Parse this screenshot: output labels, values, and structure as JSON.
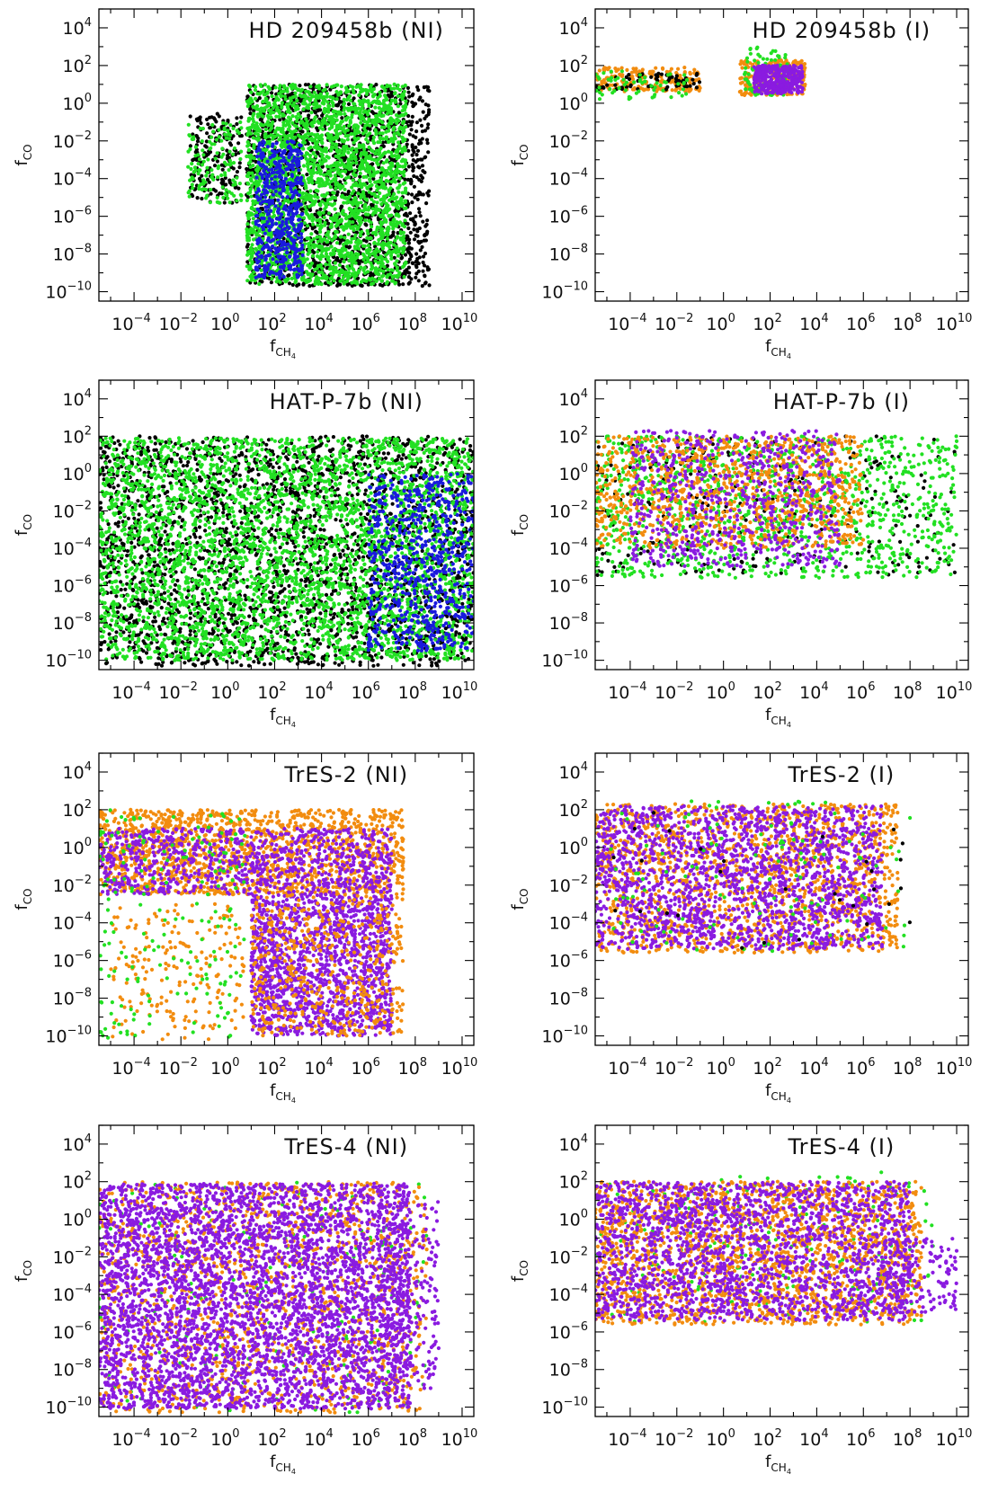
{
  "figure": {
    "layout": "4 rows x 2 columns"
  },
  "colors": {
    "black": "#000000",
    "green": "#22e022",
    "blue": "#1a1add",
    "orange": "#f28c0f",
    "purple": "#8a1be0"
  },
  "axis_text": {
    "xlabel": "f",
    "xlabel_sub": "CH",
    "xlabel_subsub": "4",
    "ylabel": "f",
    "ylabel_sub": "CO"
  },
  "ticks": {
    "x": [
      {
        "base": "10",
        "exp": "−4",
        "value": -4
      },
      {
        "base": "10",
        "exp": "−2",
        "value": -2
      },
      {
        "base": "10",
        "exp": "0",
        "value": 0
      },
      {
        "base": "10",
        "exp": "2",
        "value": 2
      },
      {
        "base": "10",
        "exp": "4",
        "value": 4
      },
      {
        "base": "10",
        "exp": "6",
        "value": 6
      },
      {
        "base": "10",
        "exp": "8",
        "value": 8
      },
      {
        "base": "10",
        "exp": "10",
        "value": 10
      }
    ],
    "y": [
      {
        "base": "10",
        "exp": "4",
        "value": 4
      },
      {
        "base": "10",
        "exp": "2",
        "value": 2
      },
      {
        "base": "10",
        "exp": "0",
        "value": 0
      },
      {
        "base": "10",
        "exp": "−2",
        "value": -2
      },
      {
        "base": "10",
        "exp": "−4",
        "value": -4
      },
      {
        "base": "10",
        "exp": "−6",
        "value": -6
      },
      {
        "base": "10",
        "exp": "−8",
        "value": -8
      },
      {
        "base": "10",
        "exp": "−10",
        "value": -10
      }
    ]
  },
  "chart_data": [
    {
      "type": "scatter",
      "title": "HD 209458b (NI)",
      "xscale": "log",
      "yscale": "log",
      "xlim_log10": [
        -5.5,
        10.5
      ],
      "ylim_log10": [
        -10.5,
        5
      ],
      "xlabel": "f_CH4",
      "ylabel": "f_CO",
      "clusters": [
        {
          "color": "black",
          "x_log10": [
            0.8,
            8.6
          ],
          "y_log10": [
            -9.7,
            1.0
          ],
          "density": 1700
        },
        {
          "color": "black",
          "x_log10": [
            -1.6,
            0.6
          ],
          "y_log10": [
            -5.3,
            -0.5
          ],
          "density": 180
        },
        {
          "color": "green",
          "x_log10": [
            0.8,
            7.6
          ],
          "y_log10": [
            -9.6,
            1.0
          ],
          "density": 2600
        },
        {
          "color": "green",
          "x_log10": [
            -1.7,
            0.6
          ],
          "y_log10": [
            -5.3,
            -1.0
          ],
          "density": 140
        },
        {
          "color": "blue",
          "x_log10": [
            1.2,
            3.2
          ],
          "y_log10": [
            -9.3,
            -2.0
          ],
          "density": 500
        }
      ]
    },
    {
      "type": "scatter",
      "title": "HD 209458b (I)",
      "xscale": "log",
      "yscale": "log",
      "xlim_log10": [
        -5.5,
        10.5
      ],
      "ylim_log10": [
        -10.5,
        5
      ],
      "xlabel": "f_CH4",
      "ylabel": "f_CO",
      "clusters": [
        {
          "color": "orange",
          "x_log10": [
            -5.5,
            -1.0
          ],
          "y_log10": [
            0.6,
            1.9
          ],
          "density": 200
        },
        {
          "color": "black",
          "x_log10": [
            -5.5,
            -1.0
          ],
          "y_log10": [
            0.7,
            1.6
          ],
          "density": 60
        },
        {
          "color": "green",
          "x_log10": [
            -5.5,
            -1.5
          ],
          "y_log10": [
            0.2,
            1.7
          ],
          "density": 60
        },
        {
          "color": "orange",
          "x_log10": [
            0.7,
            3.5
          ],
          "y_log10": [
            0.4,
            2.3
          ],
          "density": 260
        },
        {
          "color": "green",
          "x_log10": [
            0.9,
            2.8
          ],
          "y_log10": [
            0.4,
            3.0
          ],
          "density": 90
        },
        {
          "color": "purple",
          "x_log10": [
            1.3,
            3.4
          ],
          "y_log10": [
            0.5,
            2.0
          ],
          "density": 320
        }
      ]
    },
    {
      "type": "scatter",
      "title": "HAT-P-7b (NI)",
      "xscale": "log",
      "yscale": "log",
      "xlim_log10": [
        -5.5,
        10.5
      ],
      "ylim_log10": [
        -10.5,
        5
      ],
      "xlabel": "f_CH4",
      "ylabel": "f_CO",
      "clusters": [
        {
          "color": "black",
          "x_log10": [
            -5.5,
            10.5
          ],
          "y_log10": [
            -10.3,
            2.0
          ],
          "density": 2600
        },
        {
          "color": "green",
          "x_log10": [
            -5.5,
            10.5
          ],
          "y_log10": [
            -10.0,
            1.9
          ],
          "density": 3600
        },
        {
          "color": "blue",
          "x_log10": [
            6.0,
            10.5
          ],
          "y_log10": [
            -9.5,
            0.0
          ],
          "density": 700
        }
      ]
    },
    {
      "type": "scatter",
      "title": "HAT-P-7b (I)",
      "xscale": "log",
      "yscale": "log",
      "xlim_log10": [
        -5.5,
        10.5
      ],
      "ylim_log10": [
        -10.5,
        5
      ],
      "xlabel": "f_CH4",
      "ylabel": "f_CO",
      "clusters": [
        {
          "color": "black",
          "x_log10": [
            -5.5,
            10.0
          ],
          "y_log10": [
            -5.5,
            2.0
          ],
          "density": 300
        },
        {
          "color": "green",
          "x_log10": [
            -5.5,
            10.0
          ],
          "y_log10": [
            -5.6,
            2.0
          ],
          "density": 1200
        },
        {
          "color": "orange",
          "x_log10": [
            -5.5,
            6.0
          ],
          "y_log10": [
            -4.0,
            2.0
          ],
          "density": 1000
        },
        {
          "color": "purple",
          "x_log10": [
            -4.0,
            5.0
          ],
          "y_log10": [
            -5.0,
            2.3
          ],
          "density": 700
        }
      ]
    },
    {
      "type": "scatter",
      "title": "TrES-2 (NI)",
      "xscale": "log",
      "yscale": "log",
      "xlim_log10": [
        -5.5,
        10.5
      ],
      "ylim_log10": [
        -10.5,
        5
      ],
      "xlabel": "f_CH4",
      "ylabel": "f_CO",
      "clusters": [
        {
          "color": "orange",
          "x_log10": [
            -5.5,
            7.5
          ],
          "y_log10": [
            -2.5,
            2.0
          ],
          "density": 1500
        },
        {
          "color": "purple",
          "x_log10": [
            -5.5,
            7.0
          ],
          "y_log10": [
            -2.5,
            1.0
          ],
          "density": 900
        },
        {
          "color": "purple",
          "x_log10": [
            1.0,
            7.0
          ],
          "y_log10": [
            -10.0,
            -2.5
          ],
          "density": 1500
        },
        {
          "color": "orange",
          "x_log10": [
            1.0,
            7.5
          ],
          "y_log10": [
            -10.0,
            -2.5
          ],
          "density": 500
        },
        {
          "color": "orange",
          "x_log10": [
            -5.0,
            0.8
          ],
          "y_log10": [
            -10.2,
            -3.0
          ],
          "density": 200
        },
        {
          "color": "green",
          "x_log10": [
            -5.5,
            0.8
          ],
          "y_log10": [
            -10.2,
            2.0
          ],
          "density": 180
        }
      ]
    },
    {
      "type": "scatter",
      "title": "TrES-2 (I)",
      "xscale": "log",
      "yscale": "log",
      "xlim_log10": [
        -5.5,
        10.5
      ],
      "ylim_log10": [
        -10.5,
        5
      ],
      "xlabel": "f_CH4",
      "ylabel": "f_CO",
      "clusters": [
        {
          "color": "orange",
          "x_log10": [
            -5.5,
            7.5
          ],
          "y_log10": [
            -5.6,
            2.3
          ],
          "density": 1600
        },
        {
          "color": "purple",
          "x_log10": [
            -5.5,
            6.8
          ],
          "y_log10": [
            -5.4,
            2.2
          ],
          "density": 1900
        },
        {
          "color": "green",
          "x_log10": [
            -5.0,
            8.0
          ],
          "y_log10": [
            -5.5,
            2.5
          ],
          "density": 120
        },
        {
          "color": "black",
          "x_log10": [
            -5.0,
            8.0
          ],
          "y_log10": [
            -5.5,
            2.0
          ],
          "density": 30
        }
      ]
    },
    {
      "type": "scatter",
      "title": "TrES-4 (NI)",
      "xscale": "log",
      "yscale": "log",
      "xlim_log10": [
        -5.5,
        10.5
      ],
      "ylim_log10": [
        -10.5,
        5
      ],
      "xlabel": "f_CH4",
      "ylabel": "f_CO",
      "clusters": [
        {
          "color": "green",
          "x_log10": [
            -5.5,
            8.5
          ],
          "y_log10": [
            -10.3,
            2.0
          ],
          "density": 200
        },
        {
          "color": "orange",
          "x_log10": [
            -5.5,
            8.5
          ],
          "y_log10": [
            -10.3,
            2.0
          ],
          "density": 1400
        },
        {
          "color": "purple",
          "x_log10": [
            -5.5,
            7.8
          ],
          "y_log10": [
            -10.1,
            1.9
          ],
          "density": 4200
        },
        {
          "color": "purple",
          "x_log10": [
            7.0,
            9.0
          ],
          "y_log10": [
            -9.0,
            1.0
          ],
          "density": 200
        }
      ]
    },
    {
      "type": "scatter",
      "title": "TrES-4 (I)",
      "xscale": "log",
      "yscale": "log",
      "xlim_log10": [
        -5.5,
        10.5
      ],
      "ylim_log10": [
        -10.5,
        5
      ],
      "xlabel": "f_CH4",
      "ylabel": "f_CO",
      "clusters": [
        {
          "color": "green",
          "x_log10": [
            -5.5,
            9.0
          ],
          "y_log10": [
            -5.5,
            2.5
          ],
          "density": 200
        },
        {
          "color": "orange",
          "x_log10": [
            -5.5,
            8.5
          ],
          "y_log10": [
            -5.6,
            2.0
          ],
          "density": 1900
        },
        {
          "color": "purple",
          "x_log10": [
            -5.5,
            8.0
          ],
          "y_log10": [
            -5.4,
            2.0
          ],
          "density": 2000
        },
        {
          "color": "purple",
          "x_log10": [
            7.0,
            10.0
          ],
          "y_log10": [
            -5.0,
            -1.0
          ],
          "density": 150
        }
      ]
    }
  ]
}
